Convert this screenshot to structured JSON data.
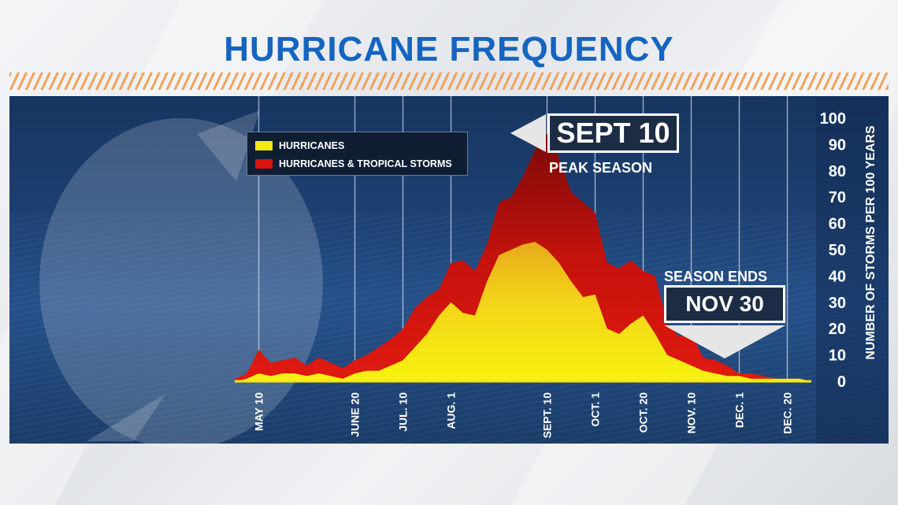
{
  "title": "HURRICANE FREQUENCY",
  "colors": {
    "title": "#1565c0",
    "hurricanes": "#f3e80f",
    "hurricanes_and_tropical": "#d6140c",
    "panel": "#1d4173",
    "stripe": "#f29a4a"
  },
  "legend": {
    "hurricanes": "HURRICANES",
    "hurricanes_and_tropical": "HURRICANES & TROPICAL STORMS"
  },
  "annotations": {
    "peak_date": "SEPT 10",
    "peak_label": "PEAK SEASON",
    "end_date": "NOV 30",
    "end_label": "SEASON ENDS"
  },
  "chart_data": {
    "type": "area",
    "title": "HURRICANE FREQUENCY",
    "xlabel": "",
    "ylabel": "NUMBER OF STORMS PER 100 YEARS",
    "ylim": [
      0,
      100
    ],
    "y_ticks": [
      0,
      10,
      20,
      30,
      40,
      50,
      60,
      70,
      80,
      90,
      100
    ],
    "y_axis_side": "right",
    "grid": true,
    "legend_position": "top-left",
    "x_tick_labels": [
      "MAY 10",
      "JUNE 20",
      "JUL. 10",
      "AUG. 1",
      "SEPT. 10",
      "OCT. 1",
      "OCT. 20",
      "NOV. 10",
      "DEC. 1",
      "DEC. 20"
    ],
    "x": [
      "MAY 1",
      "MAY 5",
      "MAY 10",
      "MAY 15",
      "MAY 20",
      "MAY 25",
      "JUNE 1",
      "JUNE 5",
      "JUNE 10",
      "JUNE 15",
      "JUNE 20",
      "JUNE 25",
      "JUL. 1",
      "JUL. 5",
      "JUL. 10",
      "JUL. 15",
      "JUL. 20",
      "JUL. 25",
      "AUG. 1",
      "AUG. 5",
      "AUG. 10",
      "AUG. 15",
      "AUG. 20",
      "AUG. 25",
      "SEPT. 1",
      "SEPT. 5",
      "SEPT. 10",
      "SEPT. 15",
      "SEPT. 20",
      "SEPT. 25",
      "OCT. 1",
      "OCT. 5",
      "OCT. 10",
      "OCT. 15",
      "OCT. 20",
      "OCT. 25",
      "NOV. 1",
      "NOV. 5",
      "NOV. 10",
      "NOV. 15",
      "NOV. 20",
      "NOV. 25",
      "DEC. 1",
      "DEC. 5",
      "DEC. 10",
      "DEC. 15",
      "DEC. 20",
      "DEC. 25",
      "DEC. 31"
    ],
    "series": [
      {
        "name": "HURRICANES & TROPICAL STORMS",
        "values": [
          1,
          3,
          12,
          7,
          8,
          9,
          6,
          9,
          7,
          5,
          8,
          10,
          13,
          16,
          20,
          28,
          32,
          35,
          45,
          46,
          42,
          52,
          68,
          70,
          78,
          88,
          94,
          85,
          72,
          68,
          64,
          45,
          43,
          46,
          42,
          40,
          22,
          17,
          18,
          9,
          8,
          6,
          3,
          3,
          2,
          1,
          1,
          1,
          0
        ]
      },
      {
        "name": "HURRICANES",
        "values": [
          0,
          1,
          3,
          2,
          3,
          3,
          2,
          3,
          2,
          1,
          3,
          4,
          4,
          6,
          8,
          13,
          18,
          25,
          30,
          26,
          25,
          38,
          48,
          50,
          52,
          53,
          50,
          45,
          38,
          32,
          33,
          20,
          18,
          22,
          25,
          18,
          10,
          8,
          6,
          4,
          3,
          2,
          2,
          1,
          1,
          1,
          1,
          1,
          0
        ]
      }
    ]
  }
}
